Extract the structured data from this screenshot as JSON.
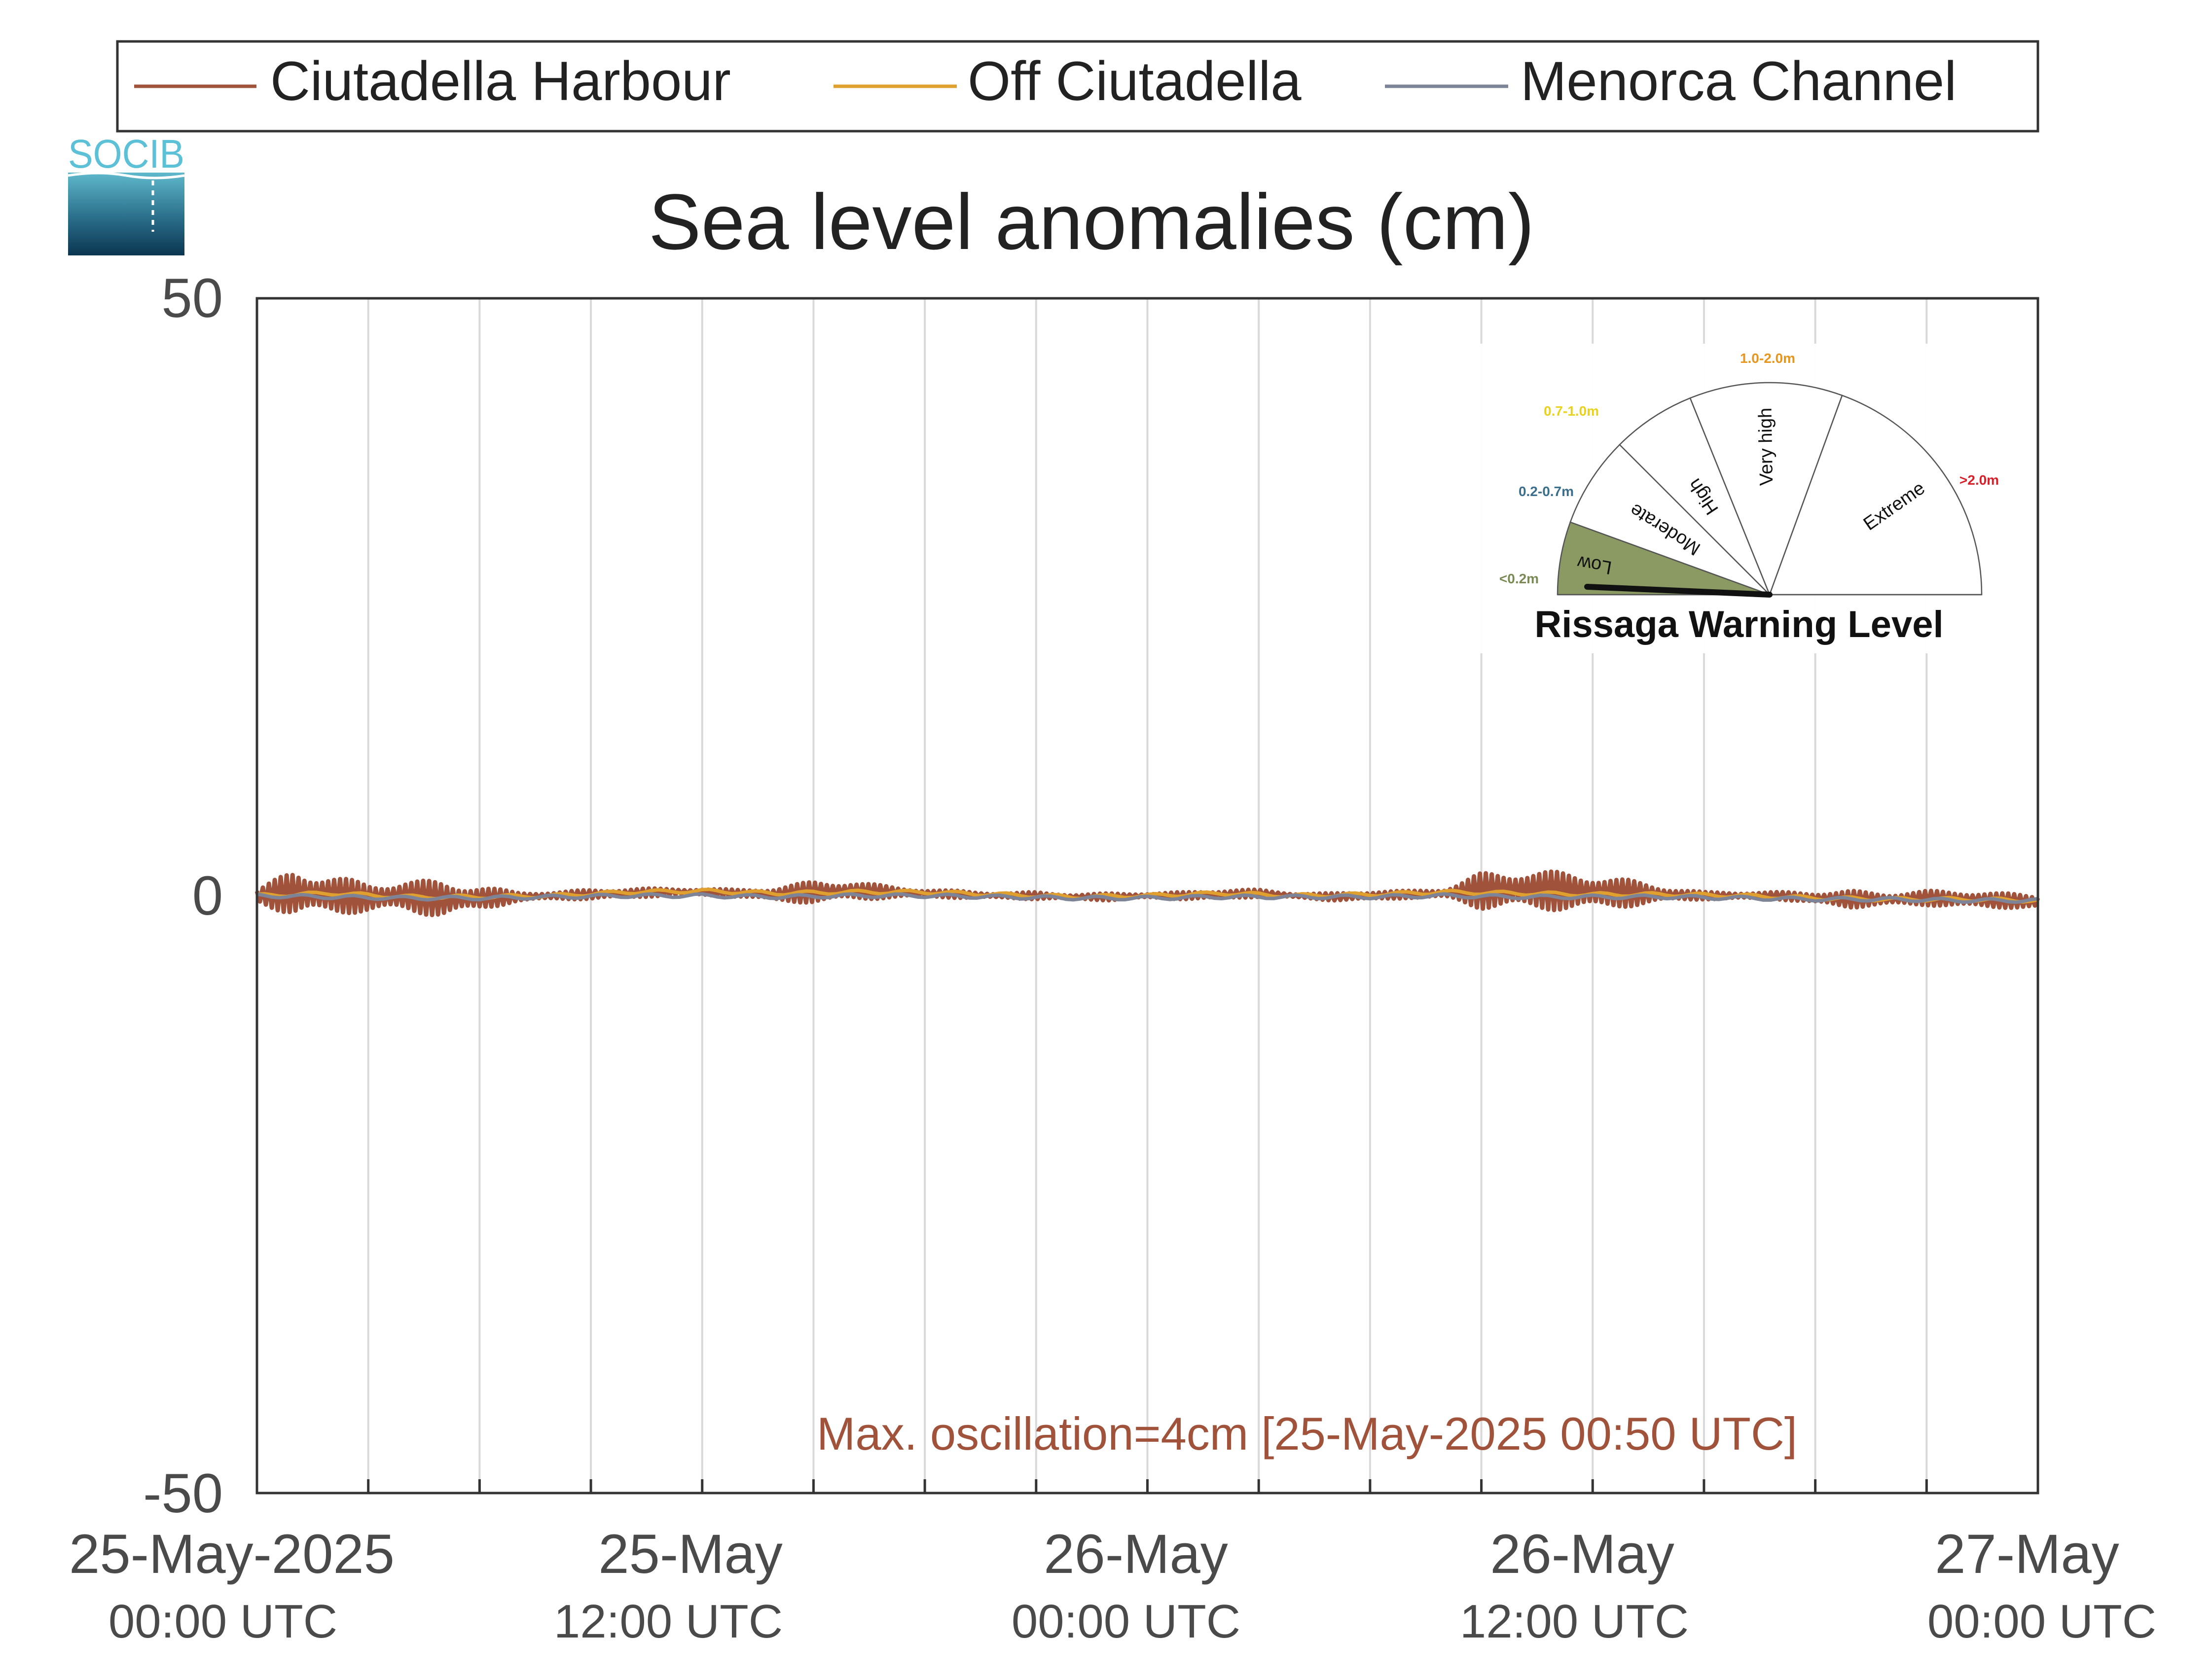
{
  "colors": {
    "ciutadella_harbour": "#a0523a",
    "off_ciutadella": "#e0a030",
    "menorca_channel": "#7d8497",
    "text": "#333333",
    "tick_text": "#4a4a4a",
    "grid": "#d9d9d9",
    "annotation": "#a0523a"
  },
  "logo": {
    "text": "SOCIB"
  },
  "chart_data": {
    "type": "line",
    "title": "Sea level anomalies (cm)",
    "xlabel": "",
    "ylabel": "",
    "ylim": [
      -50,
      50
    ],
    "yticks": [
      -50,
      0,
      50
    ],
    "xlim": [
      "2025-05-25T00:00Z",
      "2025-05-27T00:00Z"
    ],
    "grid": "vertical every 3 hours",
    "legend_position": "top",
    "xtick_labels": [
      {
        "line1": "25-May-2025",
        "line2": "00:00 UTC"
      },
      {
        "line1": "25-May",
        "line2": "12:00 UTC"
      },
      {
        "line1": "26-May",
        "line2": "00:00 UTC"
      },
      {
        "line1": "26-May",
        "line2": "12:00 UTC"
      },
      {
        "line1": "27-May",
        "line2": "00:00 UTC"
      }
    ],
    "series": [
      {
        "name": "Ciutadella Harbour",
        "color": "#a0523a",
        "x_hours": [
          0,
          1,
          2,
          3,
          4,
          5,
          6,
          7,
          8,
          9,
          10,
          11,
          12,
          13,
          14,
          15,
          16,
          17,
          18,
          19,
          20,
          21,
          22,
          23,
          24,
          25,
          26,
          27,
          28,
          29,
          30,
          31,
          32,
          33,
          34,
          35,
          36,
          37,
          38,
          39,
          40,
          41,
          42,
          43,
          44,
          45,
          46,
          47,
          48
        ],
        "values": [
          0,
          0.2,
          0.1,
          -0.2,
          0,
          -0.3,
          -0.2,
          -0.1,
          0,
          0.1,
          0.2,
          0.3,
          0.3,
          0.2,
          0.1,
          0.3,
          0.4,
          0.3,
          0.2,
          0.1,
          0.0,
          0.0,
          -0.1,
          -0.1,
          0.0,
          0.0,
          0.1,
          0.2,
          0.0,
          -0.1,
          0.0,
          0.1,
          0.2,
          0.4,
          0.5,
          0.4,
          0.3,
          0.2,
          0.1,
          0.0,
          0.0,
          0.0,
          -0.2,
          -0.3,
          -0.3,
          -0.2,
          -0.3,
          -0.4,
          -0.5
        ],
        "oscillation_amplitude": [
          0.5,
          2.0,
          1.6,
          1.2,
          1.3,
          1.5,
          1.0,
          0.4,
          0.3,
          0.4,
          0.4,
          0.3,
          0.3,
          0.3,
          0.6,
          0.9,
          0.8,
          0.5,
          0.3,
          0.3,
          0.2,
          0.3,
          0.2,
          0.3,
          0.2,
          0.3,
          0.4,
          0.3,
          0.2,
          0.3,
          0.4,
          0.3,
          0.4,
          1.5,
          1.7,
          1.6,
          1.5,
          1.1,
          0.6,
          0.3,
          0.3,
          0.3,
          0.5,
          0.7,
          0.5,
          0.6,
          0.7,
          0.6,
          0.6
        ]
      },
      {
        "name": "Off Ciutadella",
        "color": "#e0a030",
        "x_hours": [
          0,
          2,
          4,
          6,
          8,
          10,
          12,
          14,
          16,
          18,
          20,
          22,
          24,
          26,
          28,
          30,
          32,
          34,
          36,
          38,
          40,
          42,
          44,
          46,
          48
        ],
        "values": [
          0,
          0.2,
          -0.1,
          -0.1,
          0.0,
          0.3,
          0.4,
          0.2,
          0.3,
          0.3,
          0.1,
          -0.1,
          0.0,
          0.2,
          0.0,
          0.1,
          0.3,
          0.2,
          0.1,
          0.1,
          0.0,
          -0.2,
          -0.3,
          -0.3,
          -0.4
        ]
      },
      {
        "name": "Menorca Channel",
        "color": "#7d8497",
        "x_hours": [
          0,
          2,
          4,
          6,
          8,
          10,
          12,
          14,
          16,
          18,
          20,
          22,
          24,
          26,
          28,
          30,
          32,
          34,
          36,
          38,
          40,
          42,
          44,
          46,
          48
        ],
        "values": [
          0,
          -0.1,
          -0.2,
          -0.2,
          -0.1,
          0.0,
          0.0,
          -0.1,
          0.0,
          0.0,
          -0.1,
          -0.2,
          -0.2,
          -0.1,
          -0.1,
          -0.1,
          0.0,
          -0.1,
          -0.1,
          -0.1,
          -0.2,
          -0.3,
          -0.3,
          -0.4,
          -0.4
        ]
      }
    ],
    "annotation": "Max. oscillation=4cm [25-May-2025 00:50 UTC]"
  },
  "gauge": {
    "title": "Rissaga Warning Level",
    "current_level": "Low",
    "segments": [
      {
        "label": "Low",
        "range": "<0.2m",
        "range_color": "#7a8a55",
        "fill": "#8a9a62",
        "active": true
      },
      {
        "label": "Moderate",
        "range": "0.2-0.7m",
        "range_color": "#3a6e8c",
        "fill": "#ffffff",
        "active": false
      },
      {
        "label": "High",
        "range": "0.7-1.0m",
        "range_color": "#e8d21e",
        "fill": "#ffffff",
        "active": false
      },
      {
        "label": "Very high",
        "range": "1.0-2.0m",
        "range_color": "#e8951e",
        "fill": "#ffffff",
        "active": false
      },
      {
        "label": "Extreme",
        "range": ">2.0m",
        "range_color": "#d8202a",
        "fill": "#ffffff",
        "active": false
      }
    ]
  }
}
